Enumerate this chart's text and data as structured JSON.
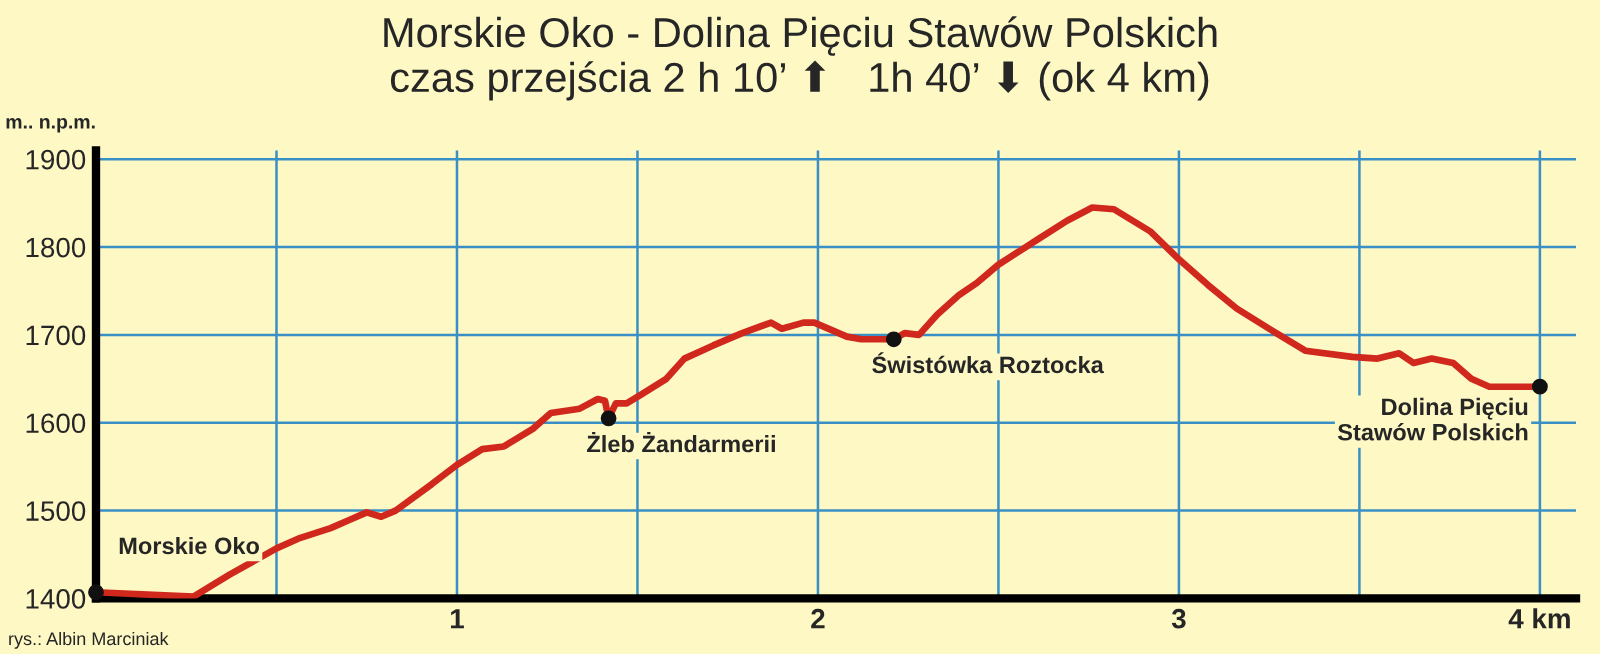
{
  "chart_data": {
    "type": "line",
    "title": "Morskie Oko - Dolina Pięciu Stawów Polskich\nczas przejścia 2 h 10’ ⬆   1h 40’ ⬇ (ok 4 km)",
    "ylabel": "m.. n.p.m.",
    "xlim": [
      0,
      4.1
    ],
    "ylim": [
      1400,
      1910
    ],
    "xticks": [
      {
        "value": 0.5,
        "label": null
      },
      1,
      {
        "value": 1.5,
        "label": null
      },
      2,
      {
        "value": 2.5,
        "label": null
      },
      3,
      {
        "value": 3.5,
        "label": null
      },
      {
        "value": 4,
        "label": "4 km"
      }
    ],
    "yticks": [
      1400,
      1500,
      1600,
      1700,
      1800,
      1900
    ],
    "grid": true,
    "legend": false,
    "series": [
      {
        "color": "#d0281c",
        "marker": "none",
        "line_style": "solid",
        "x": [
          0.0,
          0.27,
          0.37,
          0.5,
          0.56,
          0.65,
          0.7,
          0.75,
          0.79,
          0.83,
          0.93,
          1.0,
          1.07,
          1.13,
          1.21,
          1.26,
          1.34,
          1.39,
          1.41,
          1.42,
          1.44,
          1.47,
          1.51,
          1.58,
          1.63,
          1.71,
          1.79,
          1.87,
          1.9,
          1.96,
          1.99,
          2.08,
          2.12,
          2.21,
          2.24,
          2.28,
          2.33,
          2.39,
          2.44,
          2.5,
          2.61,
          2.69,
          2.76,
          2.82,
          2.92,
          3.0,
          3.08,
          3.16,
          3.25,
          3.35,
          3.48,
          3.55,
          3.61,
          3.65,
          3.7,
          3.76,
          3.81,
          3.86,
          3.98,
          4.0
        ],
        "values": [
          1407,
          1402,
          1427,
          1457,
          1468,
          1480,
          1489,
          1498,
          1493,
          1500,
          1530,
          1552,
          1570,
          1573,
          1593,
          1611,
          1616,
          1627,
          1625,
          1605,
          1622,
          1622,
          1632,
          1650,
          1673,
          1688,
          1702,
          1714,
          1707,
          1714,
          1714,
          1698,
          1695,
          1695,
          1702,
          1700,
          1723,
          1745,
          1759,
          1780,
          1809,
          1830,
          1845,
          1843,
          1818,
          1786,
          1757,
          1730,
          1707,
          1682,
          1675,
          1673,
          1679,
          1668,
          1673,
          1668,
          1650,
          1641,
          1641,
          1641
        ]
      },
      {
        "type": "scatter",
        "color": "#111111",
        "marker": "circle",
        "x": [
          0.0,
          1.42,
          2.21,
          4.0
        ],
        "values": [
          1407,
          1605,
          1695,
          1641
        ]
      }
    ],
    "annotations": [
      {
        "text": "Morskie Oko",
        "x": 0.0,
        "y": 1407
      },
      {
        "text": "Żleb Żandarmerii",
        "x": 1.42,
        "y": 1605
      },
      {
        "text": "Świstówka Roztocka",
        "x": 2.21,
        "y": 1695
      },
      {
        "text": "Dolina Pięciu\nStawów Polskich",
        "x": 4.0,
        "y": 1641
      },
      "rys.: Albin Marciniak"
    ]
  }
}
